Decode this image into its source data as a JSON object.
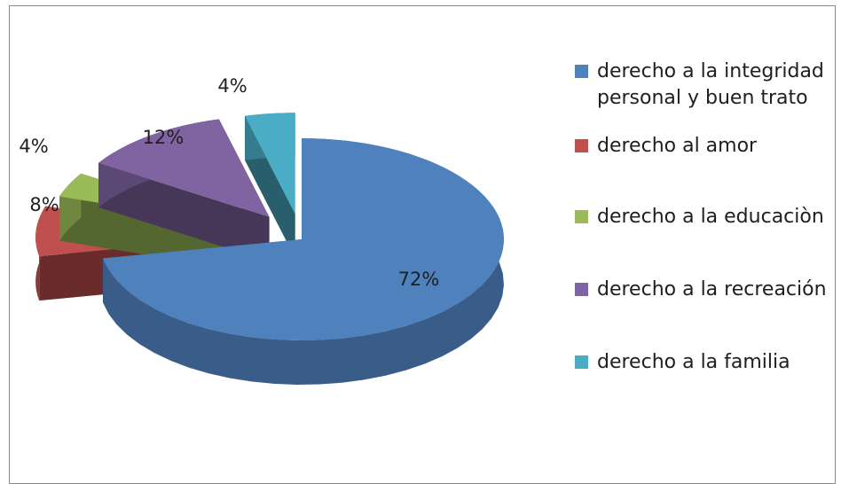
{
  "chart_data": {
    "type": "pie",
    "title": "",
    "categories": [
      "derecho a la integridad personal y buen trato",
      "derecho al amor",
      "derecho a la educaciòn",
      "derecho a la recreación",
      "derecho a la familia"
    ],
    "values": [
      72,
      8,
      4,
      12,
      4
    ],
    "labels": [
      "72%",
      "8%",
      "4%",
      "12%",
      "4%"
    ],
    "colors": [
      "#4f81bd",
      "#c0504d",
      "#9bbb59",
      "#8064a2",
      "#4bacc6"
    ],
    "style": "3d-exploded",
    "legend": "right"
  }
}
